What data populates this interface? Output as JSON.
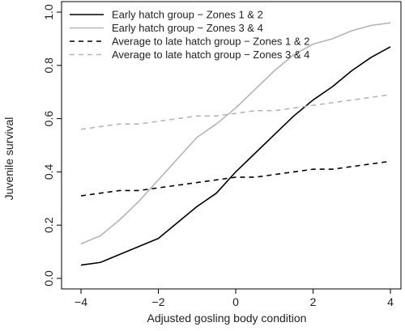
{
  "chart_data": {
    "type": "line",
    "title": "",
    "xlabel": "Adjusted gosling body condition",
    "ylabel": "Juvenile survival",
    "xlim": [
      -4,
      4
    ],
    "ylim": [
      0,
      1
    ],
    "xticks": [
      -4,
      -2,
      0,
      2,
      4
    ],
    "xtick_labels": [
      "−4",
      "−2",
      "0",
      "2",
      "4"
    ],
    "yticks": [
      0.0,
      0.2,
      0.4,
      0.6,
      0.8,
      1.0
    ],
    "ytick_labels": [
      "0.0",
      "0.2",
      "0.4",
      "0.6",
      "0.8",
      "1.0"
    ],
    "grid": false,
    "legend_position": "top-left",
    "x": [
      -4,
      -3.5,
      -3,
      -2.5,
      -2,
      -1.5,
      -1,
      -0.5,
      0,
      0.5,
      1,
      1.5,
      2,
      2.5,
      3,
      3.5,
      4
    ],
    "series": [
      {
        "name": "Early hatch group − Zones 1 & 2",
        "color": "#000000",
        "dash": "solid",
        "values": [
          0.05,
          0.06,
          0.09,
          0.12,
          0.15,
          0.21,
          0.27,
          0.32,
          0.4,
          0.47,
          0.54,
          0.61,
          0.67,
          0.72,
          0.78,
          0.83,
          0.87
        ]
      },
      {
        "name": "Early hatch group − Zones 3 & 4",
        "color": "#b5b5b5",
        "dash": "solid",
        "values": [
          0.13,
          0.16,
          0.22,
          0.29,
          0.37,
          0.45,
          0.53,
          0.58,
          0.64,
          0.71,
          0.78,
          0.84,
          0.88,
          0.9,
          0.93,
          0.95,
          0.96
        ]
      },
      {
        "name": "Average to late hatch group − Zones 1 & 2",
        "color": "#000000",
        "dash": "dashed",
        "values": [
          0.31,
          0.32,
          0.33,
          0.33,
          0.34,
          0.35,
          0.36,
          0.37,
          0.38,
          0.38,
          0.39,
          0.4,
          0.41,
          0.41,
          0.42,
          0.43,
          0.44
        ]
      },
      {
        "name": "Average to late hatch group − Zones 3 & 4",
        "color": "#b5b5b5",
        "dash": "dashed",
        "values": [
          0.56,
          0.57,
          0.58,
          0.58,
          0.59,
          0.6,
          0.61,
          0.61,
          0.62,
          0.63,
          0.63,
          0.64,
          0.65,
          0.66,
          0.67,
          0.68,
          0.69
        ]
      }
    ]
  }
}
